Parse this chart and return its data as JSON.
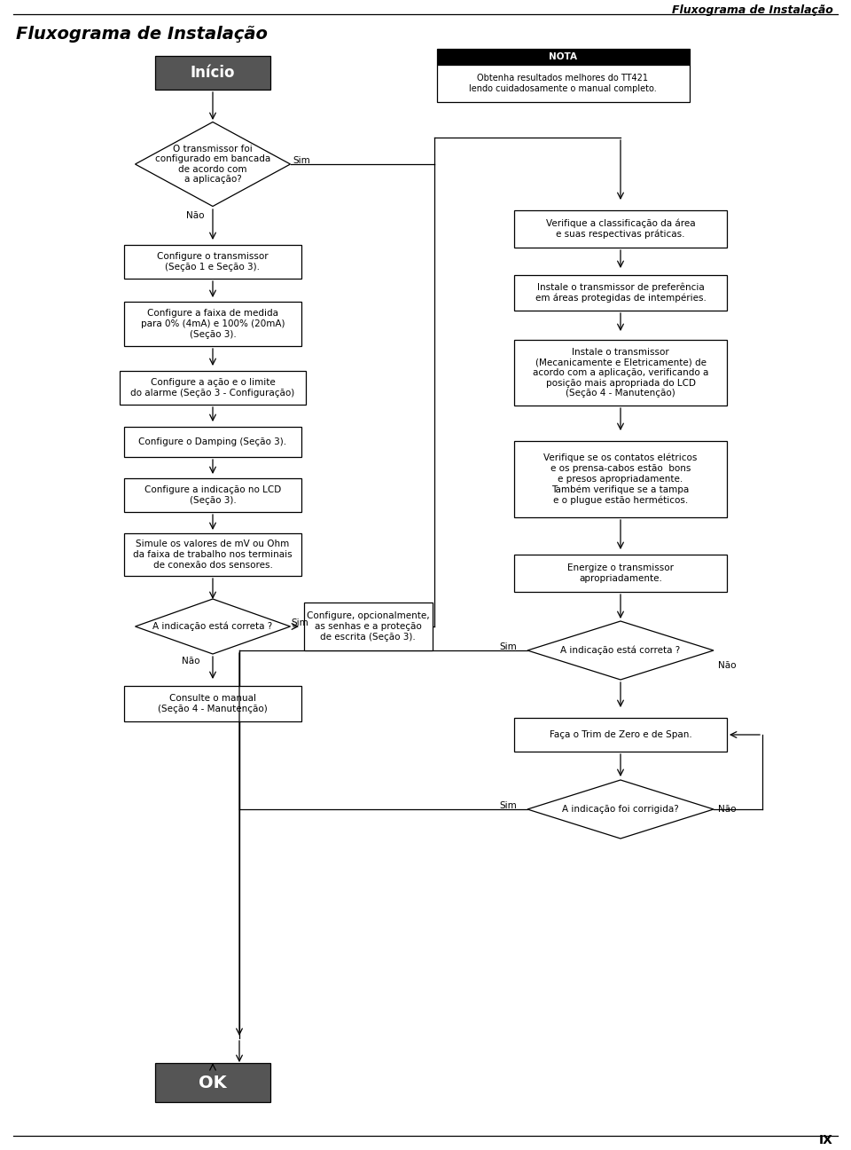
{
  "title_header": "Fluxograma de Instalação",
  "title_main": "Fluxograma de Instalação",
  "page_label": "IX",
  "nota_title": "NOTA",
  "nota_text": "Obtenha resultados melhores do TT421\nlendo cuidadosamente o manual completo.",
  "bg_color": "#ffffff",
  "box_edge": "#000000",
  "dark_fill": "#555555",
  "white_fill": "#ffffff"
}
